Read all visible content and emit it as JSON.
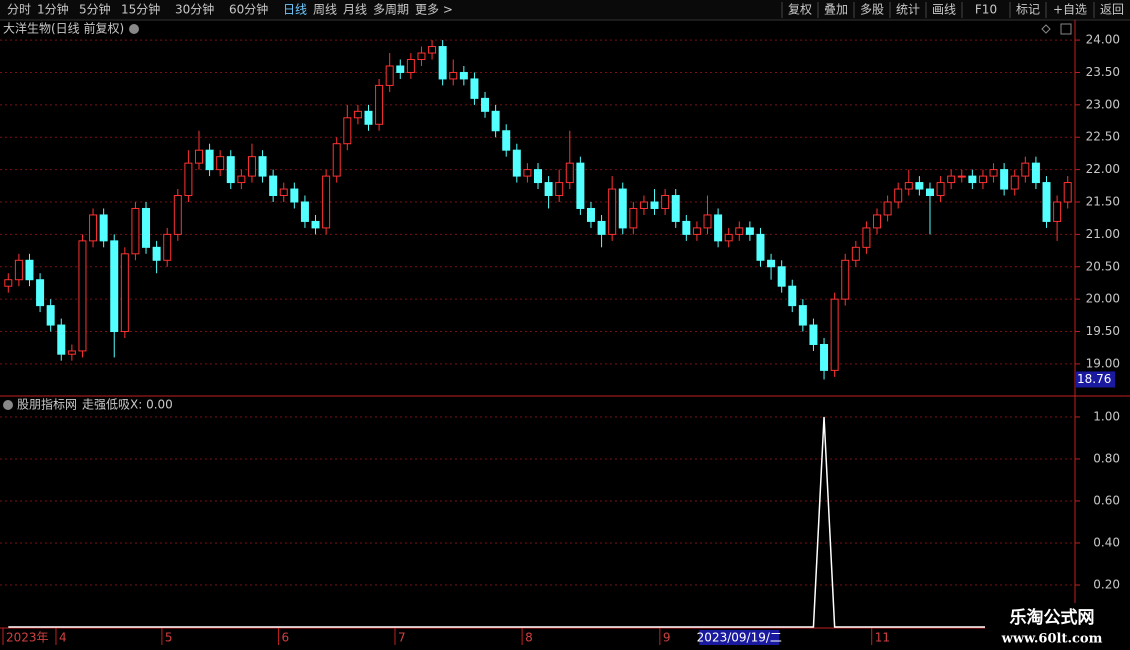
{
  "toolbar": {
    "left": [
      "分时",
      "1分钟",
      "5分钟",
      "15分钟",
      "30分钟",
      "60分钟",
      "日线",
      "周线",
      "月线",
      "多周期",
      "更多 >"
    ],
    "active": "日线",
    "right": [
      "复权",
      "叠加",
      "多股",
      "统计",
      "画线",
      "F10",
      "标记",
      "+自选",
      "返回"
    ]
  },
  "chart_data": [
    {
      "type": "candlestick",
      "title": "大洋生物(日线 前复权)",
      "up_color": "#ff3232",
      "down_color": "#54ffff",
      "open": [
        20.2,
        20.3,
        20.6,
        20.3,
        19.9,
        19.6,
        19.15,
        19.2,
        20.9,
        21.3,
        20.9,
        19.5,
        20.7,
        21.4,
        20.8,
        20.6,
        21.0,
        21.6,
        22.1,
        22.3,
        22.0,
        22.2,
        21.8,
        21.9,
        22.2,
        21.9,
        21.6,
        21.7,
        21.5,
        21.2,
        21.1,
        21.9,
        22.4,
        22.8,
        22.9,
        22.7,
        23.3,
        23.6,
        23.5,
        23.7,
        23.8,
        23.9,
        23.4,
        23.5,
        23.4,
        23.1,
        22.9,
        22.6,
        22.3,
        21.9,
        22.0,
        21.8,
        21.6,
        21.8,
        22.1,
        21.4,
        21.2,
        21.0,
        21.7,
        21.1,
        21.4,
        21.5,
        21.4,
        21.6,
        21.2,
        21.0,
        21.1,
        21.3,
        20.9,
        21.0,
        21.1,
        21.0,
        20.6,
        20.5,
        20.2,
        19.9,
        19.6,
        19.3,
        18.9,
        20.0,
        20.6,
        20.8,
        21.1,
        21.3,
        21.5,
        21.7,
        21.8,
        21.7,
        21.6,
        21.8,
        21.9,
        21.9,
        21.8,
        21.9,
        22.0,
        21.7,
        21.9,
        22.1,
        21.8,
        21.2,
        21.5
      ],
      "close": [
        20.3,
        20.6,
        20.3,
        19.9,
        19.6,
        19.15,
        19.2,
        20.9,
        21.3,
        20.9,
        19.5,
        20.7,
        21.4,
        20.8,
        20.6,
        21.0,
        21.6,
        22.1,
        22.3,
        22.0,
        22.2,
        21.8,
        21.9,
        22.2,
        21.9,
        21.6,
        21.7,
        21.5,
        21.2,
        21.1,
        21.9,
        22.4,
        22.8,
        22.9,
        22.7,
        23.3,
        23.6,
        23.5,
        23.7,
        23.8,
        23.9,
        23.4,
        23.5,
        23.4,
        23.1,
        22.9,
        22.6,
        22.3,
        21.9,
        22.0,
        21.8,
        21.6,
        21.8,
        22.1,
        21.4,
        21.2,
        21.0,
        21.7,
        21.1,
        21.4,
        21.5,
        21.4,
        21.6,
        21.2,
        21.0,
        21.1,
        21.3,
        20.9,
        21.0,
        21.1,
        21.0,
        20.6,
        20.5,
        20.2,
        19.9,
        19.6,
        19.3,
        18.9,
        20.0,
        20.6,
        20.8,
        21.1,
        21.3,
        21.5,
        21.7,
        21.8,
        21.7,
        21.6,
        21.8,
        21.9,
        21.9,
        21.8,
        21.9,
        22.0,
        21.7,
        21.9,
        22.1,
        21.8,
        21.2,
        21.5,
        21.8
      ],
      "high": [
        20.4,
        20.7,
        20.7,
        20.4,
        20.0,
        19.7,
        19.3,
        21.0,
        21.4,
        21.4,
        21.0,
        20.8,
        21.5,
        21.5,
        20.9,
        21.1,
        21.7,
        22.3,
        22.6,
        22.4,
        22.3,
        22.3,
        22.0,
        22.4,
        22.3,
        22.0,
        21.8,
        21.8,
        21.6,
        21.3,
        22.0,
        22.5,
        23.0,
        23.0,
        23.0,
        23.4,
        23.8,
        23.7,
        23.8,
        23.9,
        24.0,
        24.0,
        23.7,
        23.6,
        23.5,
        23.2,
        23.0,
        22.7,
        22.4,
        22.1,
        22.1,
        21.9,
        22.0,
        22.6,
        22.2,
        21.5,
        21.3,
        21.9,
        21.8,
        21.5,
        21.6,
        21.7,
        21.7,
        21.7,
        21.3,
        21.2,
        21.6,
        21.4,
        21.1,
        21.2,
        21.2,
        21.1,
        20.7,
        20.6,
        20.3,
        20.0,
        19.7,
        19.4,
        20.1,
        20.7,
        20.9,
        21.2,
        21.4,
        21.6,
        21.8,
        22.0,
        21.9,
        21.8,
        21.9,
        22.0,
        22.0,
        22.0,
        22.0,
        22.1,
        22.1,
        22.0,
        22.2,
        22.2,
        21.9,
        21.6,
        21.9
      ],
      "low": [
        20.1,
        20.2,
        20.2,
        19.8,
        19.5,
        19.05,
        19.05,
        19.1,
        20.8,
        20.8,
        19.1,
        19.4,
        20.6,
        20.7,
        20.4,
        20.5,
        20.9,
        21.5,
        22.0,
        21.9,
        21.9,
        21.7,
        21.7,
        21.8,
        21.8,
        21.5,
        21.5,
        21.4,
        21.1,
        21.0,
        21.0,
        21.8,
        22.3,
        22.7,
        22.6,
        22.6,
        23.2,
        23.4,
        23.4,
        23.6,
        23.7,
        23.3,
        23.3,
        23.3,
        23.0,
        22.8,
        22.5,
        22.2,
        21.8,
        21.8,
        21.7,
        21.4,
        21.5,
        21.7,
        21.3,
        21.1,
        20.8,
        20.9,
        21.0,
        21.0,
        21.3,
        21.3,
        21.3,
        21.1,
        20.9,
        20.9,
        21.0,
        20.8,
        20.8,
        20.9,
        20.9,
        20.5,
        20.3,
        20.1,
        19.8,
        19.5,
        19.2,
        18.76,
        18.8,
        19.9,
        20.5,
        20.7,
        21.0,
        21.2,
        21.4,
        21.6,
        21.6,
        21.0,
        21.5,
        21.7,
        21.8,
        21.7,
        21.7,
        21.8,
        21.6,
        21.6,
        21.8,
        21.7,
        21.1,
        20.9,
        21.4
      ],
      "ylim": [
        18.52,
        24.31
      ],
      "yticks": [
        {
          "value": 19,
          "label": "19.00"
        },
        {
          "value": 19.5,
          "label": "19.50"
        },
        {
          "value": 20,
          "label": "20.00"
        },
        {
          "value": 20.5,
          "label": "20.50"
        },
        {
          "value": 21,
          "label": "21.00"
        },
        {
          "value": 21.5,
          "label": "21.50"
        },
        {
          "value": 22,
          "label": "22.00"
        },
        {
          "value": 22.5,
          "label": "22.50"
        },
        {
          "value": 23,
          "label": "23.00"
        },
        {
          "value": 23.5,
          "label": "23.50"
        },
        {
          "value": 24,
          "label": "24.00"
        }
      ],
      "price_marker": {
        "value": 18.76,
        "label": "18.76"
      },
      "grid": true
    },
    {
      "type": "line",
      "title": "股朋指标网",
      "subtitle": "走强低吸X: 0.00",
      "color": "#ffffff",
      "values": [
        0,
        0,
        0,
        0,
        0,
        0,
        0,
        0,
        0,
        0,
        0,
        0,
        0,
        0,
        0,
        0,
        0,
        0,
        0,
        0,
        0,
        0,
        0,
        0,
        0,
        0,
        0,
        0,
        0,
        0,
        0,
        0,
        0,
        0,
        0,
        0,
        0,
        0,
        0,
        0,
        0,
        0,
        0,
        0,
        0,
        0,
        0,
        0,
        0,
        0,
        0,
        0,
        0,
        0,
        0,
        0,
        0,
        0,
        0,
        0,
        0,
        0,
        0,
        0,
        0,
        0,
        0,
        0,
        0,
        0,
        0,
        0,
        0,
        0,
        0,
        0,
        0,
        1,
        0,
        0,
        0,
        0,
        0,
        0,
        0,
        0,
        0,
        0,
        0,
        0,
        0,
        0,
        0,
        0,
        0,
        0,
        0,
        0,
        0,
        0,
        0
      ],
      "ylim": [
        0,
        1.095
      ],
      "yticks": [
        {
          "value": 0.2,
          "label": "0.20"
        },
        {
          "value": 0.4,
          "label": "0.40"
        },
        {
          "value": 0.6,
          "label": "0.60"
        },
        {
          "value": 0.8,
          "label": "0.80"
        },
        {
          "value": 1,
          "label": "1.00"
        }
      ],
      "grid": true
    }
  ],
  "xticks": [
    {
      "value": 0,
      "label": "2023年"
    },
    {
      "value": 5,
      "label": "4"
    },
    {
      "value": 15,
      "label": "5"
    },
    {
      "value": 26,
      "label": "6"
    },
    {
      "value": 37,
      "label": "7"
    },
    {
      "value": 49,
      "label": "8"
    },
    {
      "value": 62,
      "label": "9"
    },
    {
      "value": 82,
      "label": "11"
    }
  ],
  "cursor_date": {
    "value": 69,
    "label": "2023/09/19/二"
  },
  "watermark": {
    "title": "乐淘公式网",
    "url": "www.60lt.com"
  }
}
